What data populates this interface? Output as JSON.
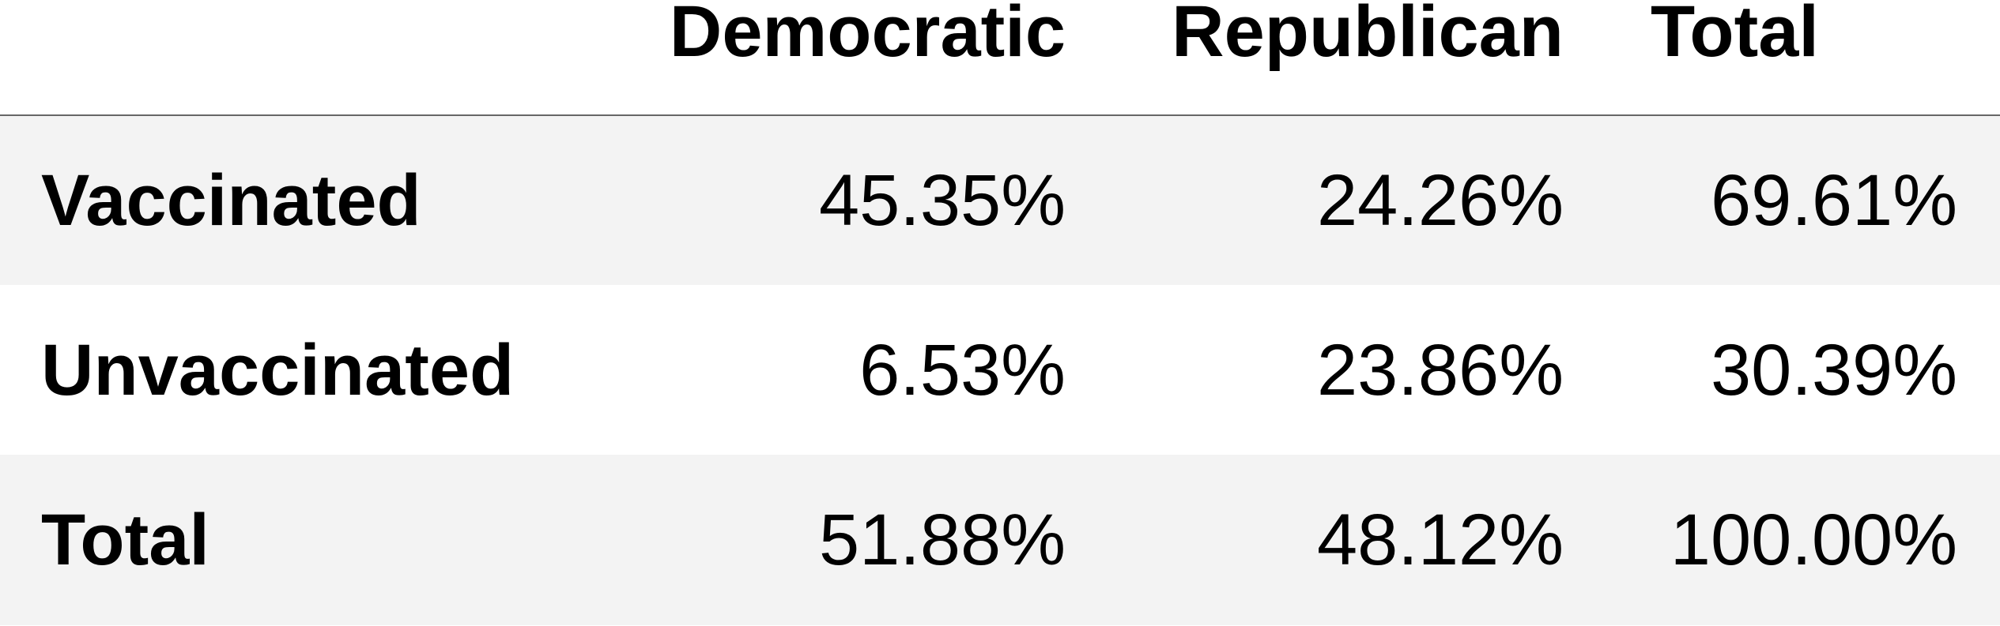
{
  "chart_data": {
    "type": "table",
    "columns": [
      "Democratic",
      "Republican",
      "Total"
    ],
    "rows": [
      {
        "label": "Vaccinated",
        "values": [
          "45.35%",
          "24.26%",
          "69.61%"
        ]
      },
      {
        "label": "Unvaccinated",
        "values": [
          "6.53%",
          "23.86%",
          "30.39%"
        ]
      },
      {
        "label": "Total",
        "values": [
          "51.88%",
          "48.12%",
          "100.00%"
        ]
      }
    ],
    "colors": {
      "stripe": "#f3f3f3",
      "background": "#ffffff",
      "header_rule": "#666666"
    }
  }
}
